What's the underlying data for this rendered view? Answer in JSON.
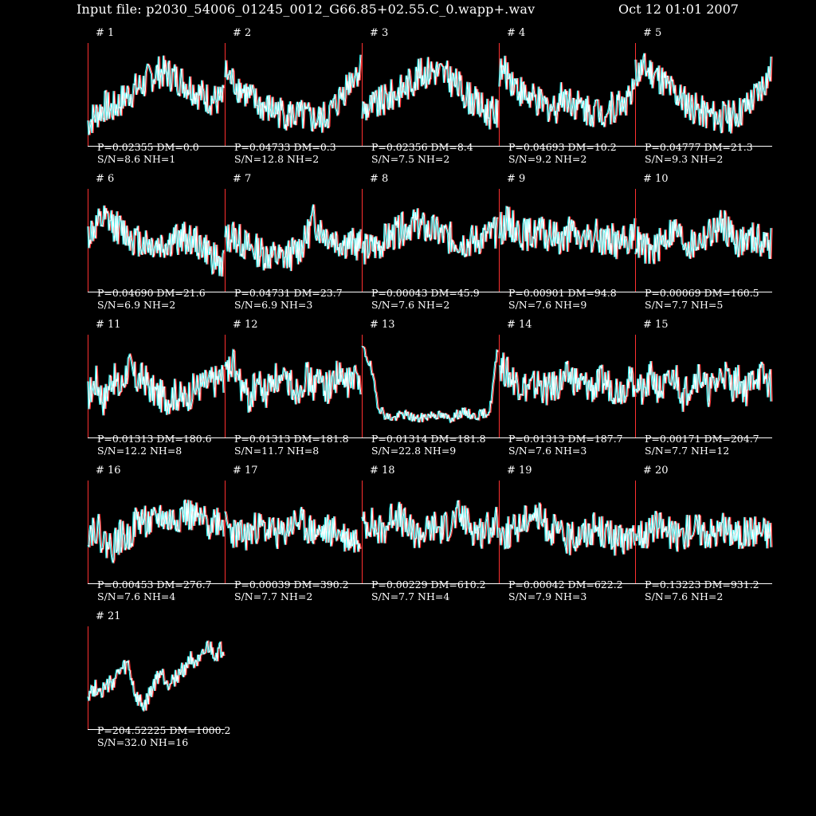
{
  "header": {
    "input_file": "Input file: p2030_54006_01245_0012_G66.85+02.55.C_0.wapp+.wav",
    "date": "Oct 12 01:01 2007"
  },
  "colors": {
    "background": "#000000",
    "trace_primary": "#ffffff",
    "trace_shadow_red": "#ff3030",
    "trace_shadow_cyan": "#30ffff",
    "axis": "#ffffff",
    "axis_left": "#ff3030"
  },
  "chart_data": {
    "type": "line",
    "panels": [
      {
        "label": "# 1",
        "p_dm": "P=0.02355 DM=0.0",
        "sn_nh": "S/N=8.6 NH=1",
        "profile": [
          0.22,
          0.3,
          0.38,
          0.35,
          0.42,
          0.5,
          0.55,
          0.6,
          0.68,
          0.72,
          0.7,
          0.66,
          0.62,
          0.56,
          0.5,
          0.46,
          0.44,
          0.43
        ]
      },
      {
        "label": "# 2",
        "p_dm": "P=0.04733 DM=0.3",
        "sn_nh": "S/N=12.8 NH=2",
        "profile": [
          0.7,
          0.62,
          0.55,
          0.47,
          0.4,
          0.36,
          0.34,
          0.32,
          0.3,
          0.28,
          0.27,
          0.25,
          0.24,
          0.3,
          0.4,
          0.55,
          0.68,
          0.75
        ]
      },
      {
        "label": "# 3",
        "p_dm": "P=0.02356 DM=8.4",
        "sn_nh": "S/N=7.5 NH=2",
        "profile": [
          0.35,
          0.38,
          0.4,
          0.45,
          0.5,
          0.55,
          0.62,
          0.68,
          0.72,
          0.74,
          0.7,
          0.65,
          0.58,
          0.5,
          0.42,
          0.36,
          0.32,
          0.3
        ]
      },
      {
        "label": "# 4",
        "p_dm": "P=0.04693 DM=10.2",
        "sn_nh": "S/N=9.2 NH=2",
        "profile": [
          0.72,
          0.7,
          0.6,
          0.5,
          0.45,
          0.4,
          0.38,
          0.36,
          0.5,
          0.44,
          0.38,
          0.35,
          0.34,
          0.33,
          0.36,
          0.4,
          0.45,
          0.5
        ]
      },
      {
        "label": "# 5",
        "p_dm": "P=0.04777 DM=21.3",
        "sn_nh": "S/N=9.3 NH=2",
        "profile": [
          0.7,
          0.75,
          0.72,
          0.66,
          0.58,
          0.5,
          0.44,
          0.38,
          0.33,
          0.3,
          0.28,
          0.27,
          0.28,
          0.32,
          0.38,
          0.48,
          0.6,
          0.72
        ]
      },
      {
        "label": "# 6",
        "p_dm": "P=0.04690 DM=21.6",
        "sn_nh": "S/N=6.9 NH=2",
        "profile": [
          0.55,
          0.62,
          0.68,
          0.66,
          0.6,
          0.55,
          0.5,
          0.48,
          0.45,
          0.44,
          0.46,
          0.5,
          0.52,
          0.5,
          0.45,
          0.38,
          0.3,
          0.25
        ]
      },
      {
        "label": "# 7",
        "p_dm": "P=0.04731 DM=23.7",
        "sn_nh": "S/N=6.9 NH=3",
        "profile": [
          0.5,
          0.55,
          0.48,
          0.42,
          0.4,
          0.36,
          0.34,
          0.32,
          0.35,
          0.4,
          0.48,
          0.7,
          0.6,
          0.55,
          0.5,
          0.48,
          0.46,
          0.45
        ]
      },
      {
        "label": "# 8",
        "p_dm": "P=0.00043 DM=45.9",
        "sn_nh": "S/N=7.6 NH=2",
        "profile": [
          0.4,
          0.42,
          0.45,
          0.5,
          0.55,
          0.6,
          0.66,
          0.64,
          0.6,
          0.58,
          0.55,
          0.52,
          0.5,
          0.48,
          0.5,
          0.52,
          0.55,
          0.56
        ]
      },
      {
        "label": "# 9",
        "p_dm": "P=0.00901 DM=94.8",
        "sn_nh": "S/N=7.6 NH=9",
        "profile": [
          0.6,
          0.68,
          0.62,
          0.56,
          0.55,
          0.58,
          0.52,
          0.55,
          0.5,
          0.58,
          0.52,
          0.48,
          0.55,
          0.5,
          0.52,
          0.46,
          0.5,
          0.55
        ]
      },
      {
        "label": "# 10",
        "p_dm": "P=0.00069 DM=160.5",
        "sn_nh": "S/N=7.7 NH=5",
        "profile": [
          0.5,
          0.42,
          0.38,
          0.45,
          0.55,
          0.6,
          0.5,
          0.44,
          0.5,
          0.55,
          0.6,
          0.66,
          0.55,
          0.48,
          0.5,
          0.52,
          0.48,
          0.45
        ]
      },
      {
        "label": "# 11",
        "p_dm": "P=0.01313 DM=180.6",
        "sn_nh": "S/N=12.2 NH=8",
        "profile": [
          0.4,
          0.55,
          0.35,
          0.6,
          0.45,
          0.7,
          0.55,
          0.58,
          0.45,
          0.4,
          0.38,
          0.42,
          0.36,
          0.45,
          0.5,
          0.52,
          0.55,
          0.6
        ]
      },
      {
        "label": "# 12",
        "p_dm": "P=0.01313 DM=181.8",
        "sn_nh": "S/N=11.7 NH=8",
        "profile": [
          0.6,
          0.7,
          0.5,
          0.35,
          0.55,
          0.4,
          0.6,
          0.5,
          0.55,
          0.45,
          0.6,
          0.5,
          0.55,
          0.48,
          0.6,
          0.52,
          0.56,
          0.58
        ]
      },
      {
        "label": "# 13",
        "p_dm": "P=0.01314 DM=181.8",
        "sn_nh": "S/N=22.8 NH=9",
        "profile": [
          0.88,
          0.7,
          0.3,
          0.2,
          0.18,
          0.22,
          0.2,
          0.17,
          0.2,
          0.22,
          0.2,
          0.18,
          0.22,
          0.24,
          0.2,
          0.22,
          0.25,
          0.88
        ]
      },
      {
        "label": "# 14",
        "p_dm": "P=0.01313 DM=187.7",
        "sn_nh": "S/N=7.6 NH=3",
        "profile": [
          0.72,
          0.62,
          0.55,
          0.5,
          0.48,
          0.52,
          0.45,
          0.5,
          0.55,
          0.6,
          0.52,
          0.5,
          0.48,
          0.55,
          0.5,
          0.46,
          0.52,
          0.55
        ]
      },
      {
        "label": "# 15",
        "p_dm": "P=0.00171 DM=204.7",
        "sn_nh": "S/N=7.7 NH=12",
        "profile": [
          0.55,
          0.4,
          0.6,
          0.45,
          0.5,
          0.6,
          0.4,
          0.55,
          0.62,
          0.45,
          0.5,
          0.65,
          0.5,
          0.55,
          0.45,
          0.62,
          0.58,
          0.5
        ]
      },
      {
        "label": "# 16",
        "p_dm": "P=0.00453 DM=276.7",
        "sn_nh": "S/N=7.6 NH=4",
        "profile": [
          0.5,
          0.55,
          0.4,
          0.35,
          0.45,
          0.42,
          0.6,
          0.62,
          0.55,
          0.66,
          0.6,
          0.62,
          0.7,
          0.64,
          0.6,
          0.58,
          0.62,
          0.6
        ]
      },
      {
        "label": "# 17",
        "p_dm": "P=0.00039 DM=390.2",
        "sn_nh": "S/N=7.7 NH=2",
        "profile": [
          0.55,
          0.5,
          0.45,
          0.48,
          0.55,
          0.52,
          0.5,
          0.45,
          0.55,
          0.6,
          0.55,
          0.5,
          0.48,
          0.52,
          0.5,
          0.45,
          0.42,
          0.48
        ]
      },
      {
        "label": "# 18",
        "p_dm": "P=0.00229 DM=610.2",
        "sn_nh": "S/N=7.7 NH=4",
        "profile": [
          0.55,
          0.6,
          0.5,
          0.55,
          0.7,
          0.6,
          0.5,
          0.48,
          0.5,
          0.55,
          0.52,
          0.58,
          0.65,
          0.6,
          0.52,
          0.5,
          0.55,
          0.58
        ]
      },
      {
        "label": "# 19",
        "p_dm": "P=0.00042 DM=622.2",
        "sn_nh": "S/N=7.9 NH=3",
        "profile": [
          0.5,
          0.48,
          0.52,
          0.6,
          0.7,
          0.62,
          0.55,
          0.5,
          0.45,
          0.42,
          0.48,
          0.5,
          0.55,
          0.5,
          0.45,
          0.4,
          0.42,
          0.5
        ]
      },
      {
        "label": "# 20",
        "p_dm": "P=0.13223 DM=931.2",
        "sn_nh": "S/N=7.6 NH=2",
        "profile": [
          0.5,
          0.48,
          0.52,
          0.55,
          0.5,
          0.45,
          0.48,
          0.55,
          0.52,
          0.5,
          0.48,
          0.52,
          0.5,
          0.46,
          0.5,
          0.52,
          0.5,
          0.48
        ]
      },
      {
        "label": "# 21",
        "p_dm": "P=204.52225 DM=1000.2",
        "sn_nh": "S/N=32.0 NH=16",
        "profile": [
          0.35,
          0.4,
          0.38,
          0.45,
          0.55,
          0.62,
          0.3,
          0.2,
          0.38,
          0.55,
          0.45,
          0.5,
          0.58,
          0.7,
          0.62,
          0.8,
          0.72,
          0.78
        ]
      }
    ]
  }
}
